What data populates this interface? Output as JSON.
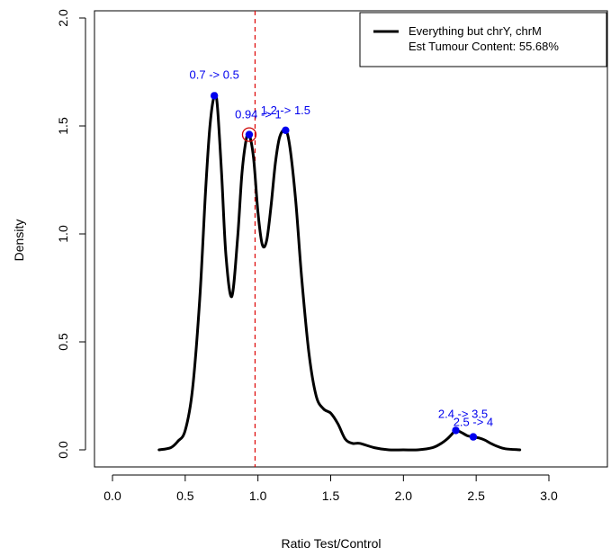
{
  "chart_data": {
    "type": "line",
    "title": "",
    "xlabel": "Ratio Test/Control",
    "ylabel": "Density",
    "xlim": [
      0,
      3.4
    ],
    "ylim": [
      0,
      2.0
    ],
    "xticks": [
      0.0,
      0.5,
      1.0,
      1.5,
      2.0,
      2.5,
      3.0
    ],
    "xtick_labels": [
      "0.0",
      "0.5",
      "1.0",
      "1.5",
      "2.0",
      "2.5",
      "3.0"
    ],
    "yticks": [
      0.0,
      0.5,
      1.0,
      1.5,
      2.0
    ],
    "ytick_labels": [
      "0.0",
      "0.5",
      "1.0",
      "1.5",
      "2.0"
    ],
    "grid": false,
    "series": [
      {
        "name": "Everything but chrY, chrM",
        "color": "#000000",
        "x": [
          0.32,
          0.4,
          0.45,
          0.5,
          0.55,
          0.6,
          0.64,
          0.67,
          0.7,
          0.72,
          0.75,
          0.78,
          0.82,
          0.86,
          0.89,
          0.92,
          0.94,
          0.97,
          1.0,
          1.03,
          1.06,
          1.09,
          1.12,
          1.15,
          1.19,
          1.22,
          1.26,
          1.3,
          1.35,
          1.4,
          1.45,
          1.5,
          1.55,
          1.6,
          1.65,
          1.7,
          1.8,
          1.9,
          2.0,
          2.1,
          2.2,
          2.26,
          2.3,
          2.33,
          2.36,
          2.4,
          2.44,
          2.48,
          2.52,
          2.56,
          2.6,
          2.65,
          2.7,
          2.8
        ],
        "y": [
          0.0,
          0.01,
          0.04,
          0.09,
          0.28,
          0.7,
          1.2,
          1.5,
          1.64,
          1.6,
          1.28,
          0.9,
          0.71,
          0.98,
          1.28,
          1.44,
          1.46,
          1.35,
          1.1,
          0.95,
          0.97,
          1.13,
          1.33,
          1.45,
          1.48,
          1.4,
          1.15,
          0.8,
          0.45,
          0.25,
          0.19,
          0.17,
          0.12,
          0.05,
          0.03,
          0.03,
          0.01,
          0.0,
          0.0,
          0.0,
          0.01,
          0.03,
          0.05,
          0.07,
          0.09,
          0.08,
          0.065,
          0.06,
          0.055,
          0.045,
          0.03,
          0.015,
          0.005,
          0.0
        ]
      }
    ],
    "vline": {
      "x": 0.98,
      "color": "#dd0000",
      "style": "dashed"
    },
    "peaks": [
      {
        "x": 0.7,
        "y": 1.64,
        "label": "0.7 -> 0.5"
      },
      {
        "x": 0.94,
        "y": 1.46,
        "label": "0.94 -> 1",
        "highlighted": true
      },
      {
        "x": 1.19,
        "y": 1.48,
        "label": "1.2 -> 1.5"
      },
      {
        "x": 2.36,
        "y": 0.09,
        "label": "2.4 -> 3.5"
      },
      {
        "x": 2.48,
        "y": 0.06,
        "label": "2.5 -> 4"
      }
    ],
    "peak_color": "#0000ee",
    "highlight_color": "#cc0000",
    "legend": {
      "position": "top-right",
      "lines": [
        "Everything but chrY, chrM",
        "Est Tumour Content: 55.68%"
      ]
    }
  }
}
